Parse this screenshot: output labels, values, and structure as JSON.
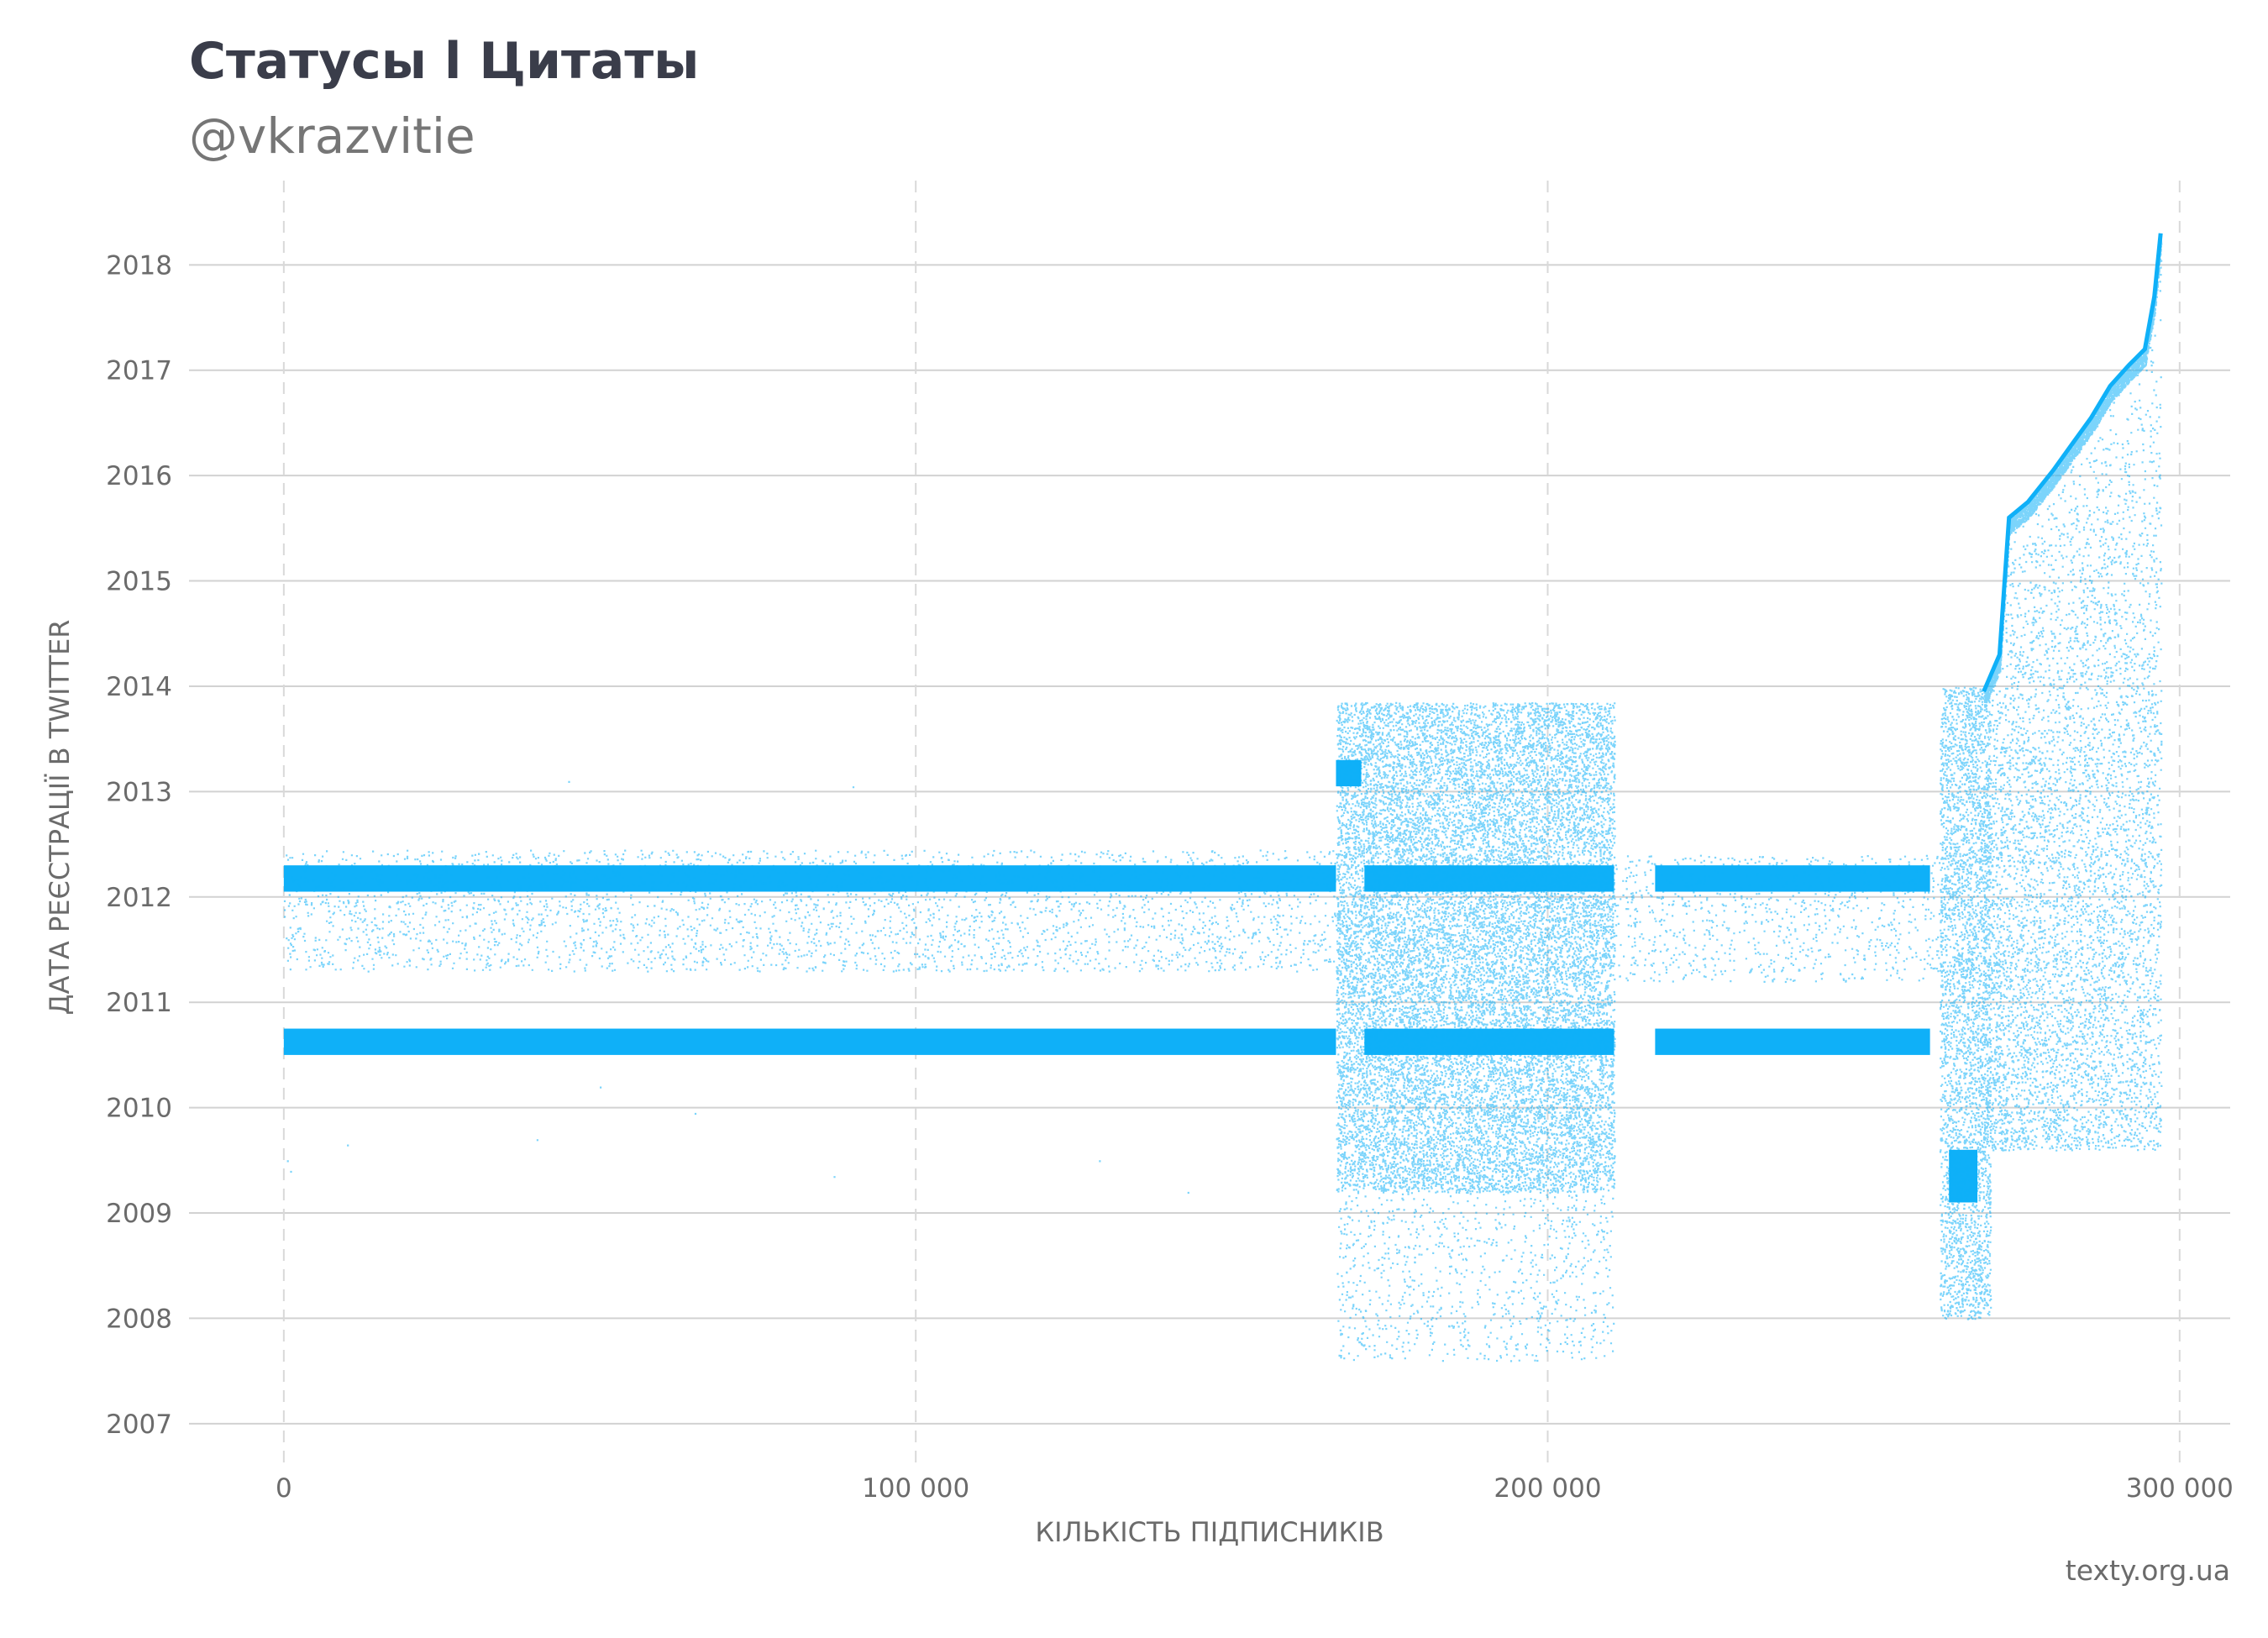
{
  "header": {
    "title": "Статусы l Цитаты",
    "subtitle": "@vkrazvitie"
  },
  "footer": {
    "source": "texty.org.ua"
  },
  "colors": {
    "points": "#0fb0f8",
    "grid_h": "#d2d2d2",
    "grid_v": "#d9d9d9",
    "text": "#6b6b6b",
    "title": "#3a3d4a"
  },
  "chart_data": {
    "type": "scatter",
    "xlabel": "КІЛЬКІСТЬ ПІДПИСНИКІВ",
    "ylabel": "ДАТА РЕЄСТРАЦІЇ В TWITTER",
    "xlim": [
      -15000,
      308000
    ],
    "ylim": [
      2006.6,
      2018.8
    ],
    "x_ticks": [
      0,
      100000,
      200000,
      300000
    ],
    "x_tick_labels": [
      "0",
      "100 000",
      "200 000",
      "300 000"
    ],
    "y_ticks": [
      2007,
      2008,
      2009,
      2010,
      2011,
      2012,
      2013,
      2014,
      2015,
      2016,
      2017,
      2018
    ],
    "y_tick_labels": [
      "2007",
      "2008",
      "2009",
      "2010",
      "2011",
      "2012",
      "2013",
      "2014",
      "2015",
      "2016",
      "2017",
      "2018"
    ],
    "grid": "horizontal solid, vertical dashed",
    "legend": "none",
    "bands": [
      {
        "x": [
          0,
          166500
        ],
        "y": [
          2012.05,
          2012.3
        ]
      },
      {
        "x": [
          0,
          166500
        ],
        "y": [
          2010.5,
          2010.75
        ]
      },
      {
        "x": [
          171000,
          210500
        ],
        "y": [
          2012.05,
          2012.3
        ]
      },
      {
        "x": [
          171000,
          210500
        ],
        "y": [
          2010.5,
          2010.75
        ]
      },
      {
        "x": [
          217000,
          260500
        ],
        "y": [
          2012.05,
          2012.3
        ]
      },
      {
        "x": [
          217000,
          260500
        ],
        "y": [
          2010.5,
          2010.75
        ]
      },
      {
        "x": [
          166500,
          170500
        ],
        "y": [
          2013.05,
          2013.3
        ]
      },
      {
        "x": [
          263500,
          268000
        ],
        "y": [
          2009.1,
          2009.6
        ]
      }
    ],
    "clouds": [
      {
        "x": [
          0,
          166500
        ],
        "y": [
          2011.3,
          2012.45
        ],
        "n": 3200
      },
      {
        "x": [
          166500,
          210500
        ],
        "y": [
          2009.2,
          2013.85
        ],
        "n": 17000
      },
      {
        "x": [
          166500,
          210500
        ],
        "y": [
          2007.6,
          2009.2
        ],
        "n": 900
      },
      {
        "x": [
          210500,
          262000
        ],
        "y": [
          2011.2,
          2012.4
        ],
        "n": 900
      },
      {
        "x": [
          262000,
          270000
        ],
        "y": [
          2008.0,
          2014.0
        ],
        "n": 3500
      }
    ],
    "frontier": [
      {
        "x": 269000,
        "y": 2013.95
      },
      {
        "x": 271500,
        "y": 2014.3
      },
      {
        "x": 273000,
        "y": 2015.6
      },
      {
        "x": 276000,
        "y": 2015.75
      },
      {
        "x": 280000,
        "y": 2016.05
      },
      {
        "x": 283000,
        "y": 2016.3
      },
      {
        "x": 286000,
        "y": 2016.55
      },
      {
        "x": 289000,
        "y": 2016.85
      },
      {
        "x": 292000,
        "y": 2017.05
      },
      {
        "x": 294500,
        "y": 2017.2
      },
      {
        "x": 296000,
        "y": 2017.7
      },
      {
        "x": 297000,
        "y": 2018.3
      }
    ],
    "frontier_points": 9000,
    "outliers": [
      {
        "x": 500,
        "y": 2009.5
      },
      {
        "x": 1000,
        "y": 2009.4
      },
      {
        "x": 45000,
        "y": 2013.1
      },
      {
        "x": 90000,
        "y": 2013.05
      },
      {
        "x": 50000,
        "y": 2010.2
      },
      {
        "x": 65000,
        "y": 2009.95
      },
      {
        "x": 40000,
        "y": 2009.7
      },
      {
        "x": 129000,
        "y": 2009.5
      },
      {
        "x": 87000,
        "y": 2009.35
      },
      {
        "x": 143000,
        "y": 2009.2
      },
      {
        "x": 10000,
        "y": 2009.65
      }
    ]
  }
}
